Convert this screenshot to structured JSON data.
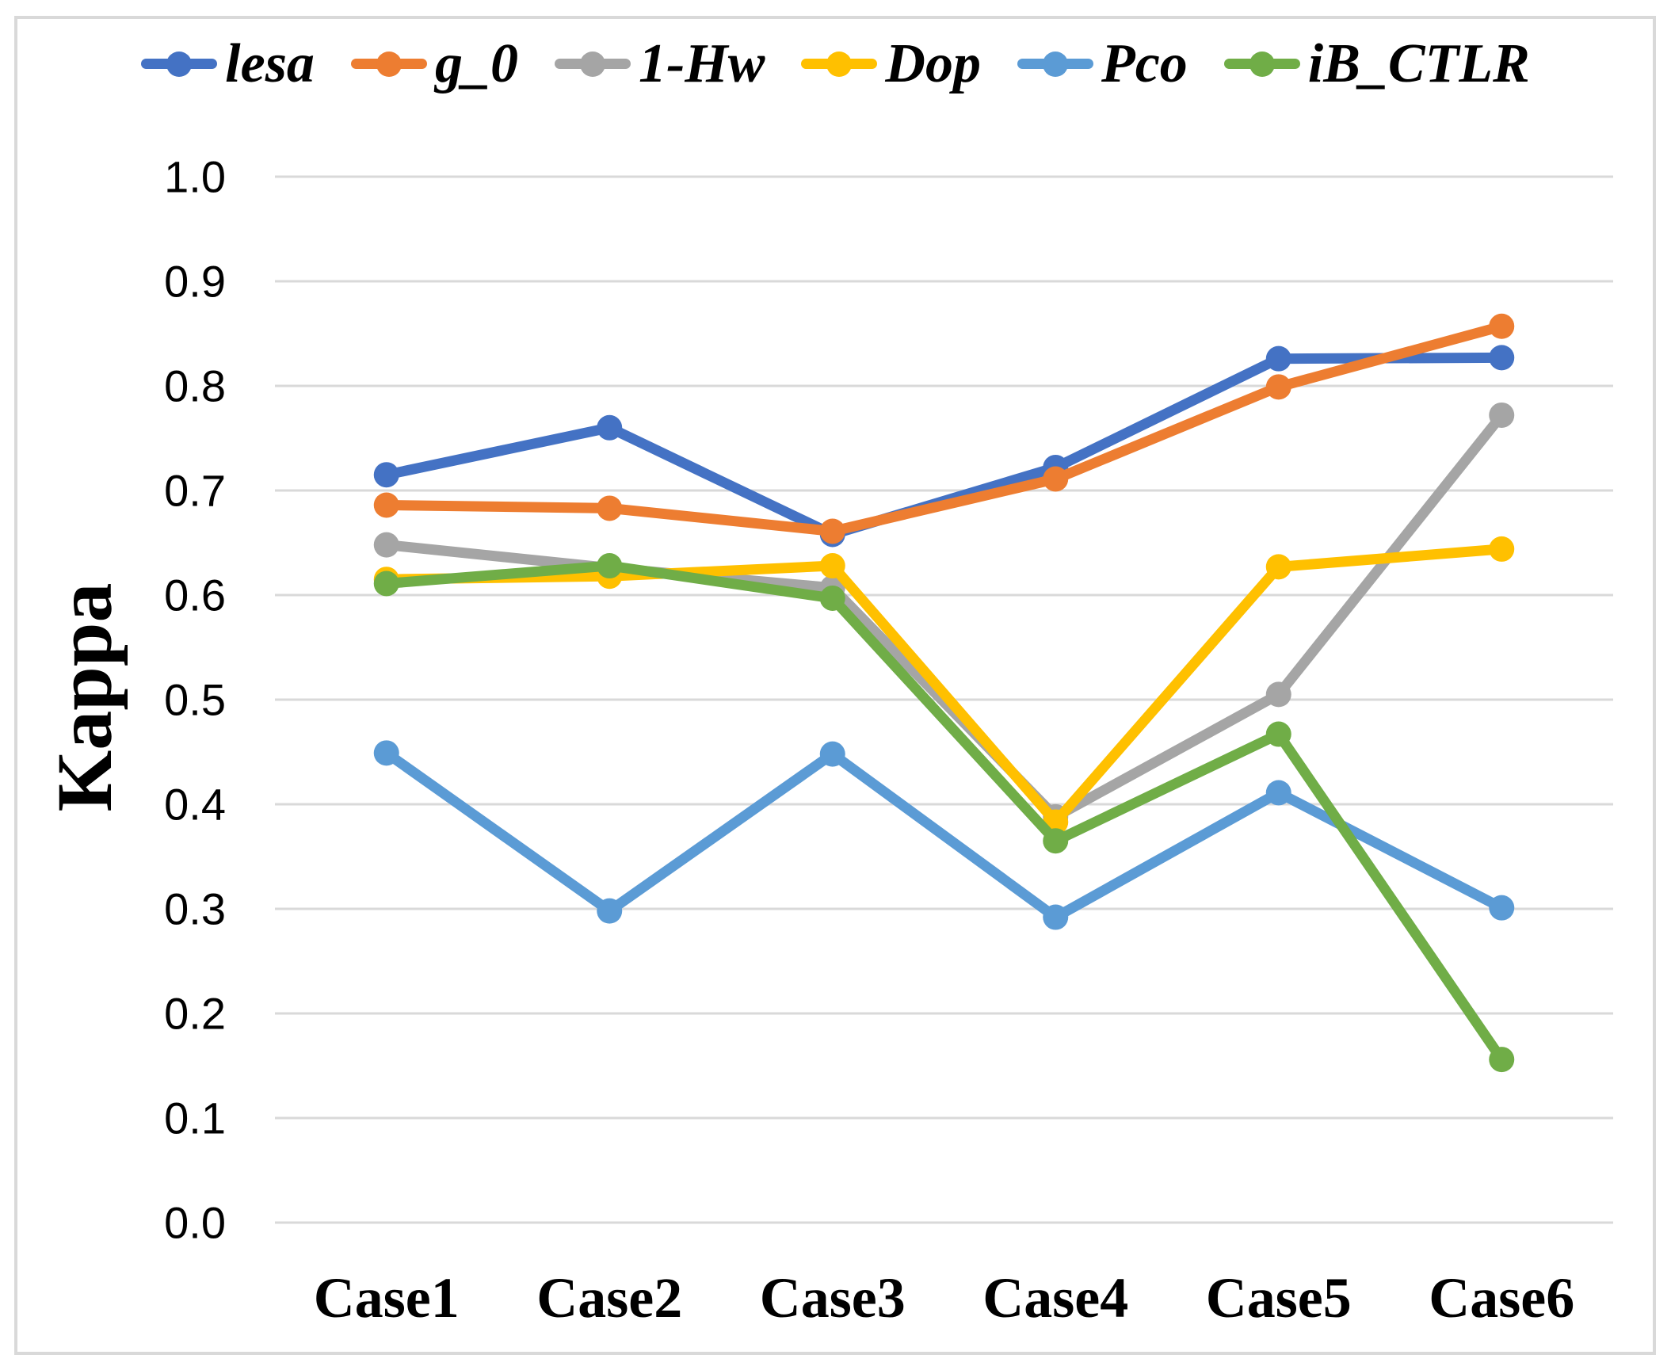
{
  "figure": {
    "background": "#FFFFFF",
    "border_color": "#D9D9D9"
  },
  "chart_data": {
    "type": "line",
    "title": "",
    "xlabel": "",
    "ylabel": "Kappa",
    "ylim": [
      0.0,
      1.0
    ],
    "ytick_labels": [
      "0.0",
      "0.1",
      "0.2",
      "0.3",
      "0.4",
      "0.5",
      "0.6",
      "0.7",
      "0.8",
      "0.9",
      "1.0"
    ],
    "grid": "horizontal",
    "gridline_color": "#D9D9D9",
    "legend_position": "top",
    "categories": [
      "Case1",
      "Case2",
      "Case3",
      "Case4",
      "Case5",
      "Case6"
    ],
    "series": [
      {
        "name": "lesa",
        "color": "#4472C4",
        "values": [
          0.715,
          0.76,
          0.658,
          0.722,
          0.826,
          0.827
        ]
      },
      {
        "name": "g_0",
        "color": "#ED7D31",
        "values": [
          0.686,
          0.683,
          0.661,
          0.711,
          0.799,
          0.857
        ]
      },
      {
        "name": "1-Hw",
        "color": "#A5A5A5",
        "values": [
          0.648,
          0.626,
          0.607,
          0.388,
          0.505,
          0.772
        ]
      },
      {
        "name": "Dop",
        "color": "#FFC000",
        "values": [
          0.615,
          0.618,
          0.628,
          0.383,
          0.627,
          0.644
        ]
      },
      {
        "name": "Pco",
        "color": "#5B9BD5",
        "values": [
          0.449,
          0.298,
          0.448,
          0.292,
          0.411,
          0.301
        ]
      },
      {
        "name": "iB_CTLR",
        "color": "#70AD47",
        "values": [
          0.611,
          0.628,
          0.597,
          0.365,
          0.467,
          0.156
        ]
      }
    ]
  }
}
